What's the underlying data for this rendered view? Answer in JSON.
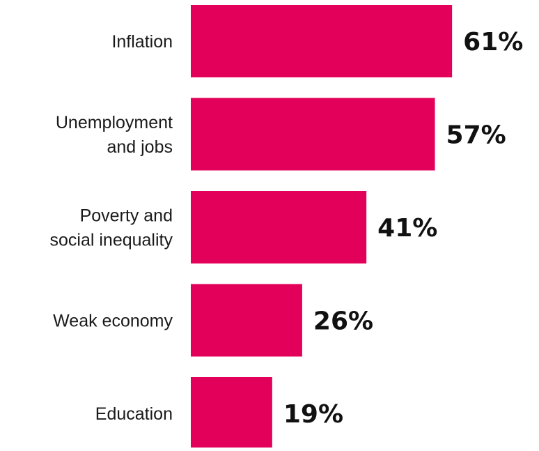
{
  "chart_data": {
    "type": "bar",
    "orientation": "horizontal",
    "categories": [
      [
        "Inflation"
      ],
      [
        "Unemployment",
        "and jobs"
      ],
      [
        "Poverty and",
        "social inequality"
      ],
      [
        "Weak economy"
      ],
      [
        "Education"
      ]
    ],
    "values": [
      61,
      57,
      41,
      26,
      19
    ],
    "value_labels": [
      "61%",
      "57%",
      "41%",
      "26%",
      "19%"
    ],
    "unit": "%",
    "title": "",
    "xlabel": "",
    "ylabel": "",
    "grid": false,
    "legend": "none",
    "colors": {
      "bar": "#E3005A",
      "label": "#1a1a1a",
      "value": "#111111",
      "background": "#ffffff"
    }
  }
}
